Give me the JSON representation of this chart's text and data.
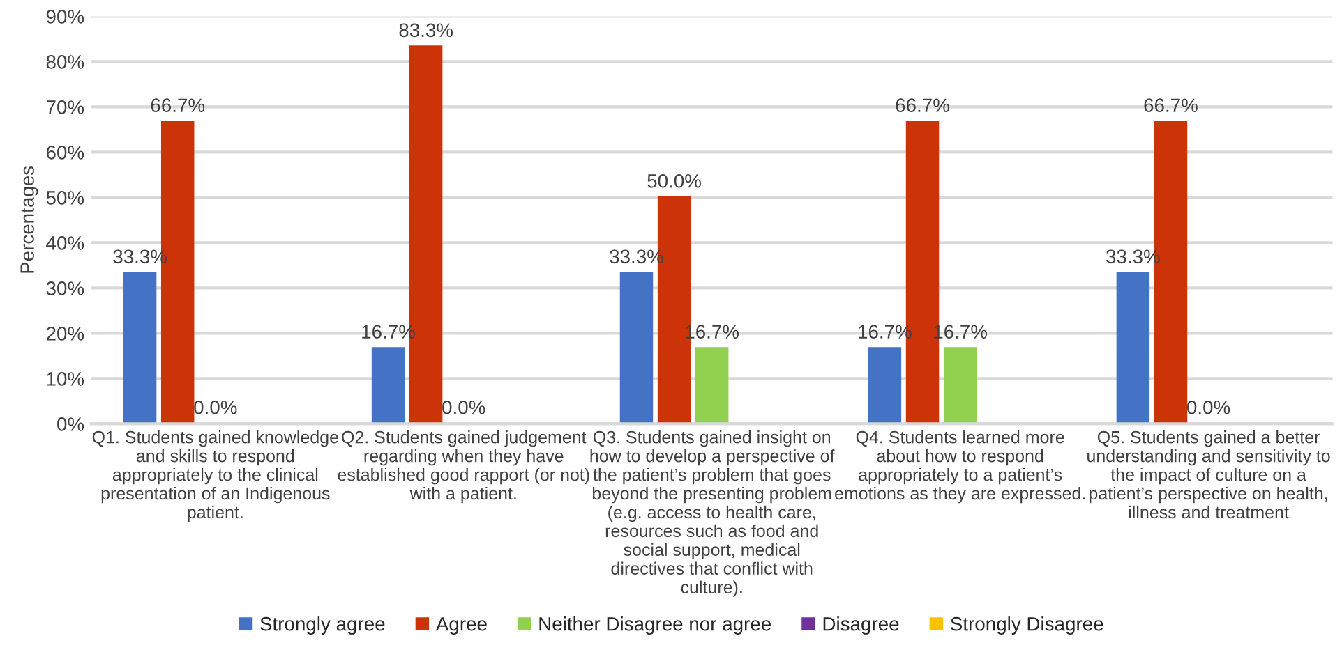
{
  "chart_data": {
    "type": "bar",
    "ylabel": "Percentages",
    "categories": [
      "Q1. Students gained knowledge\nand skills to respond\nappropriately to the clinical\npresentation of an Indigenous\npatient.",
      "Q2. Students gained judgement\nregarding when they have\nestablished good rapport (or not)\nwith a patient.",
      "Q3. Students gained insight on\nhow to develop a perspective of\nthe patient’s problem that goes\nbeyond the presenting problem\n(e.g. access to health care,\nresources such as food and\nsocial support, medical\ndirectives that conflict with\nculture).",
      "Q4. Students learned more\nabout how to respond\nappropriately to a patient’s\nemotions as they are expressed.",
      "Q5. Students gained a better\nunderstanding and sensitivity to\nthe impact of culture on a\npatient’s perspective on health,\nillness and treatment"
    ],
    "series": [
      {
        "name": "Strongly agree",
        "color": "#4472c4",
        "values": [
          33.3,
          16.7,
          33.3,
          16.7,
          33.3
        ],
        "value_labels": [
          "33.3%",
          "16.7%",
          "33.3%",
          "16.7%",
          "33.3%"
        ]
      },
      {
        "name": "Agree",
        "color": "#cc3308",
        "values": [
          66.7,
          83.3,
          50.0,
          66.7,
          66.7
        ],
        "value_labels": [
          "66.7%",
          "83.3%",
          "50.0%",
          "66.7%",
          "66.7%"
        ]
      },
      {
        "name": "Neither Disagree nor agree",
        "color": "#92d050",
        "values": [
          0.0,
          0.0,
          16.7,
          16.7,
          0.0
        ],
        "value_labels": [
          "0.0%",
          "0.0%",
          "16.7%",
          "16.7%",
          "0.0%"
        ]
      },
      {
        "name": "Disagree",
        "color": "#7030a0",
        "values": [
          null,
          null,
          null,
          null,
          null
        ]
      },
      {
        "name": "Strongly Disagree",
        "color": "#ffc000",
        "values": [
          null,
          null,
          null,
          null,
          null
        ]
      }
    ],
    "ylim": [
      0,
      90
    ],
    "yticks": [
      {
        "value": 0,
        "label": "0%"
      },
      {
        "value": 10,
        "label": "10%"
      },
      {
        "value": 20,
        "label": "20%"
      },
      {
        "value": 30,
        "label": "30%"
      },
      {
        "value": 40,
        "label": "40%"
      },
      {
        "value": 50,
        "label": "50%"
      },
      {
        "value": 60,
        "label": "60%"
      },
      {
        "value": 70,
        "label": "70%"
      },
      {
        "value": 80,
        "label": "80%"
      },
      {
        "value": 90,
        "label": "90%"
      }
    ],
    "grid": "y",
    "legend": "bottom"
  }
}
